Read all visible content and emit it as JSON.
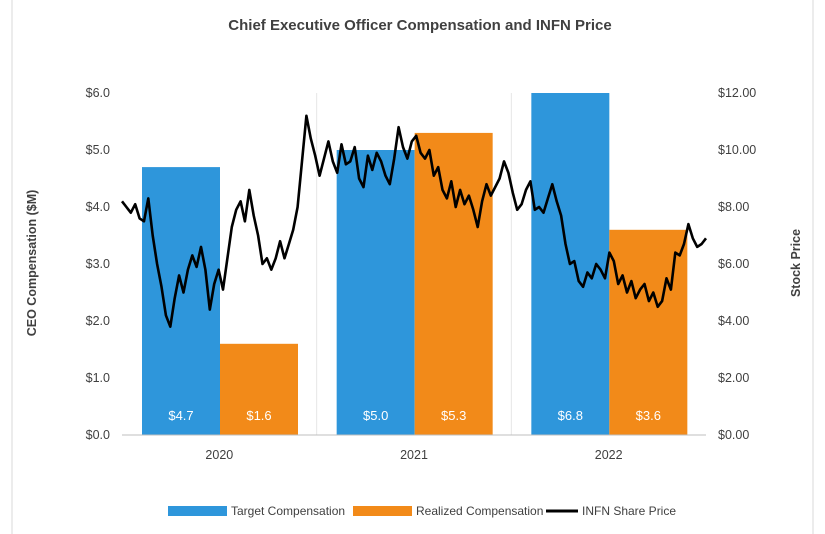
{
  "chart_data": {
    "type": "bar",
    "title": "Chief Executive Officer Compensation and INFN Price",
    "categories": [
      "2020",
      "2021",
      "2022"
    ],
    "ylabel": "CEO Compensation ($M)",
    "y2label": "Stock Price",
    "ylim": [
      0,
      6
    ],
    "y2lim": [
      0,
      12
    ],
    "yticks": [
      "$0.0",
      "$1.0",
      "$2.0",
      "$3.0",
      "$4.0",
      "$5.0",
      "$6.0"
    ],
    "y2ticks": [
      "$0.00",
      "$2.00",
      "$4.00",
      "$6.00",
      "$8.00",
      "$10.00",
      "$12.00"
    ],
    "series": [
      {
        "name": "Target Compensation",
        "color": "#2E96DB",
        "values": [
          4.7,
          5.0,
          6.8
        ],
        "labels": [
          "$4.7",
          "$5.0",
          "$6.8"
        ]
      },
      {
        "name": "Realized Compensation",
        "color": "#F28A19",
        "values": [
          1.6,
          5.3,
          3.6
        ],
        "labels": [
          "$1.6",
          "$5.3",
          "$3.6"
        ]
      }
    ],
    "line_series": {
      "name": "INFN Share Price",
      "color": "#000000",
      "axis": "right",
      "values": [
        8.2,
        8.0,
        7.8,
        8.1,
        7.6,
        7.5,
        8.3,
        7.0,
        6.0,
        5.2,
        4.2,
        3.8,
        4.8,
        5.6,
        5.0,
        5.8,
        6.3,
        5.9,
        6.6,
        5.8,
        4.4,
        5.3,
        5.8,
        5.1,
        6.2,
        7.3,
        7.9,
        8.2,
        7.5,
        8.6,
        7.7,
        7.0,
        6.0,
        6.2,
        5.8,
        6.2,
        6.8,
        6.2,
        6.7,
        7.2,
        8.0,
        9.6,
        11.2,
        10.4,
        9.8,
        9.1,
        9.7,
        10.3,
        9.6,
        9.2,
        10.2,
        9.5,
        9.6,
        10.1,
        9.0,
        8.7,
        9.8,
        9.3,
        9.9,
        9.6,
        9.1,
        8.8,
        9.7,
        10.8,
        10.1,
        9.7,
        10.3,
        10.5,
        9.9,
        9.7,
        10.0,
        9.1,
        9.4,
        8.6,
        8.3,
        8.9,
        8.0,
        8.6,
        8.1,
        8.4,
        7.9,
        7.3,
        8.2,
        8.8,
        8.4,
        8.7,
        9.0,
        9.6,
        9.2,
        8.5,
        7.9,
        8.1,
        8.6,
        8.9,
        7.9,
        8.0,
        7.8,
        8.3,
        8.8,
        8.2,
        7.7,
        6.7,
        6.0,
        6.1,
        5.4,
        5.2,
        5.7,
        5.5,
        6.0,
        5.8,
        5.5,
        6.4,
        6.1,
        5.3,
        5.6,
        5.0,
        5.4,
        4.8,
        5.1,
        5.3,
        4.7,
        5.0,
        4.5,
        4.7,
        5.5,
        5.1,
        6.4,
        6.3,
        6.7,
        7.4,
        6.9,
        6.6,
        6.7,
        6.9
      ]
    },
    "legend_position": "bottom",
    "grid": false
  }
}
